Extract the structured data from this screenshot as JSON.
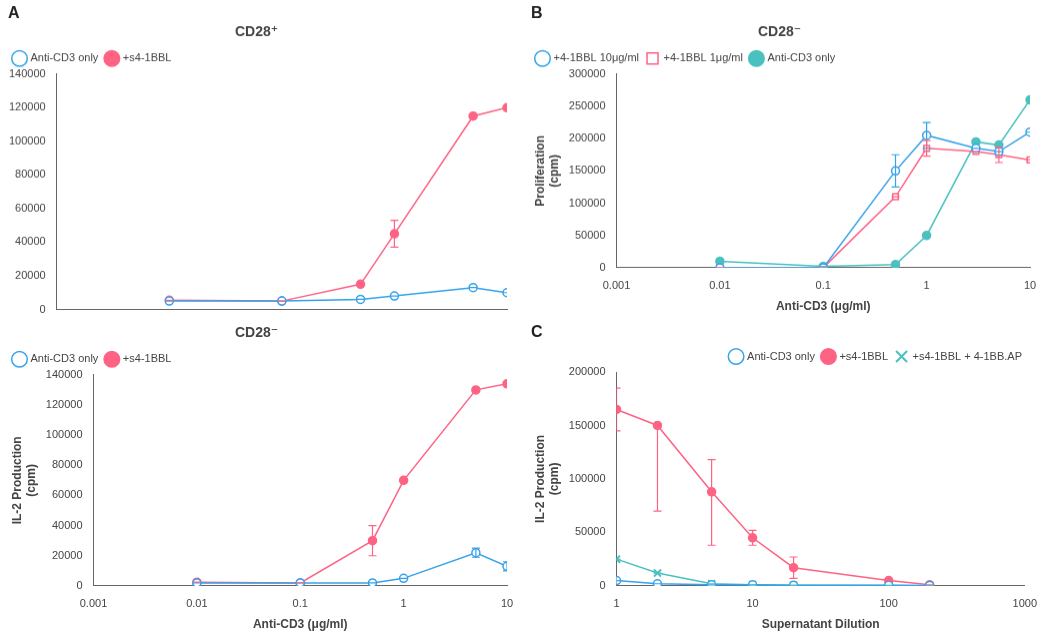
{
  "chart_data": [
    {
      "type": "line",
      "title": "CD28⁺",
      "annotations": [
        "A"
      ],
      "log": "x",
      "grid": false,
      "legend": "upper left",
      "tick_labels": "y",
      "xlim": [
        0.001,
        10
      ],
      "xticks": [
        0.001,
        0.01,
        0.1,
        1,
        10
      ],
      "ylim": [
        0,
        140000
      ],
      "yticks": [
        0,
        20000,
        40000,
        60000,
        80000,
        100000,
        120000,
        140000
      ],
      "x": [
        0.01,
        0.1,
        0.5,
        1,
        5,
        10
      ],
      "series": [
        {
          "name": "Anti-CD3 only",
          "marker": "open_circle",
          "values": [
            5000,
            5000,
            6000,
            8000,
            13000,
            10000
          ],
          "yerr": [
            0,
            0,
            0,
            0,
            0,
            0
          ]
        },
        {
          "name": "+s4-1BBL",
          "marker": "filled_circle",
          "values": [
            5500,
            5000,
            15000,
            45000,
            115000,
            120000
          ],
          "yerr": [
            0,
            0,
            0,
            8000,
            0,
            0
          ]
        }
      ]
    },
    {
      "type": "line",
      "title": "CD28⁻",
      "log": "x",
      "grid": false,
      "legend": "upper left",
      "xlabel": "Anti-CD3 (μg/ml)",
      "ylabel": "IL-2 Production\n(cpm)",
      "xlim": [
        0.001,
        10
      ],
      "xticks": [
        0.001,
        0.01,
        0.1,
        1,
        10
      ],
      "ylim": [
        0,
        140000
      ],
      "yticks": [
        0,
        20000,
        40000,
        60000,
        80000,
        100000,
        120000,
        140000
      ],
      "x": [
        0.01,
        0.1,
        0.5,
        1,
        5,
        10
      ],
      "series": [
        {
          "name": "Anti-CD3 only",
          "marker": "open_circle",
          "values": [
            2000,
            2000,
            2000,
            5000,
            22000,
            13000
          ],
          "yerr": [
            0,
            0,
            0,
            0,
            3000,
            3000
          ]
        },
        {
          "name": "+s4-1BBL",
          "marker": "filled_circle",
          "values": [
            2500,
            2000,
            30000,
            70000,
            130000,
            134000
          ],
          "yerr": [
            0,
            0,
            10000,
            0,
            0,
            0
          ]
        }
      ]
    },
    {
      "type": "line",
      "title": "CD28⁻",
      "annotations": [
        "B"
      ],
      "log": "x",
      "grid": false,
      "legend": "upper left",
      "xlabel": "Anti-CD3 (μg/ml)",
      "ylabel": "Proliferation\n(cpm)",
      "xlim": [
        0.001,
        10
      ],
      "xticks": [
        0.001,
        0.01,
        0.1,
        1,
        10
      ],
      "ylim": [
        0,
        300000
      ],
      "yticks": [
        0,
        50000,
        100000,
        150000,
        200000,
        250000,
        300000
      ],
      "x": [
        0.01,
        0.1,
        0.5,
        1,
        3,
        5,
        10
      ],
      "series": [
        {
          "name": "+4-1BBL 10μg/ml",
          "marker": "open_circle",
          "values": [
            0,
            0,
            150000,
            205000,
            185000,
            180000,
            210000
          ],
          "yerr": [
            0,
            0,
            25000,
            20000,
            0,
            0,
            0
          ]
        },
        {
          "name": "+4-1BBL 1μg/ml",
          "marker": "open_square",
          "values": [
            0,
            0,
            110000,
            185000,
            180000,
            175000,
            167000
          ],
          "yerr": [
            0,
            0,
            0,
            12000,
            0,
            12000,
            0
          ]
        },
        {
          "name": "Anti-CD3 only",
          "marker": "filled_circle",
          "values": [
            10000,
            2000,
            5000,
            50000,
            195000,
            190000,
            260000
          ],
          "yerr": [
            0,
            0,
            0,
            0,
            0,
            0,
            0
          ]
        }
      ]
    },
    {
      "type": "line",
      "annotations": [
        "C"
      ],
      "log": "x",
      "grid": false,
      "legend": "upper right",
      "xlabel": "Supernatant Dilution",
      "ylabel": "IL-2 Production\n(cpm)",
      "xlim": [
        1,
        1000
      ],
      "xticks": [
        1,
        10,
        100,
        1000
      ],
      "ylim": [
        0,
        200000
      ],
      "yticks": [
        0,
        50000,
        100000,
        150000,
        200000
      ],
      "x": [
        1,
        2,
        5,
        10,
        20,
        100,
        200
      ],
      "series": [
        {
          "name": "Anti-CD3 only",
          "marker": "open_circle",
          "values": [
            5000,
            2000,
            1000,
            1000,
            500,
            500,
            300
          ],
          "yerr": [
            0,
            0,
            0,
            0,
            0,
            0,
            0
          ]
        },
        {
          "name": "+s4-1BBL",
          "marker": "filled_circle",
          "values": [
            165000,
            150000,
            88000,
            45000,
            17000,
            5000,
            1000
          ],
          "yerr_low": [
            20000,
            80000,
            50000,
            7000,
            10000,
            0,
            0
          ],
          "yerr_high": [
            20000,
            0,
            30000,
            7000,
            10000,
            0,
            0
          ]
        },
        {
          "name": "+s4-1BBL + 4-1BB.AP",
          "marker": "cross",
          "values": [
            25000,
            12000,
            2000,
            1000,
            500,
            300,
            200
          ],
          "yerr": [
            0,
            0,
            0,
            0,
            0,
            0,
            0
          ]
        }
      ]
    }
  ]
}
